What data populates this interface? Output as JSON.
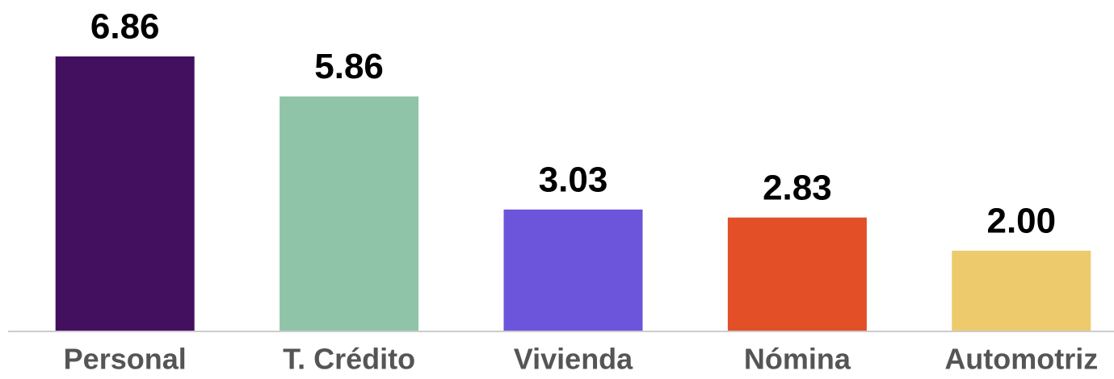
{
  "chart_data": {
    "type": "bar",
    "categories": [
      "Personal",
      "T. Crédito",
      "Vivienda",
      "Nómina",
      "Automotriz"
    ],
    "values": [
      6.86,
      5.86,
      3.03,
      2.83,
      2.0
    ],
    "value_labels": [
      "6.86",
      "5.86",
      "3.03",
      "2.83",
      "2.00"
    ],
    "colors": [
      "#42105e",
      "#8fc4a8",
      "#6c55da",
      "#e34f26",
      "#edca6b"
    ]
  }
}
